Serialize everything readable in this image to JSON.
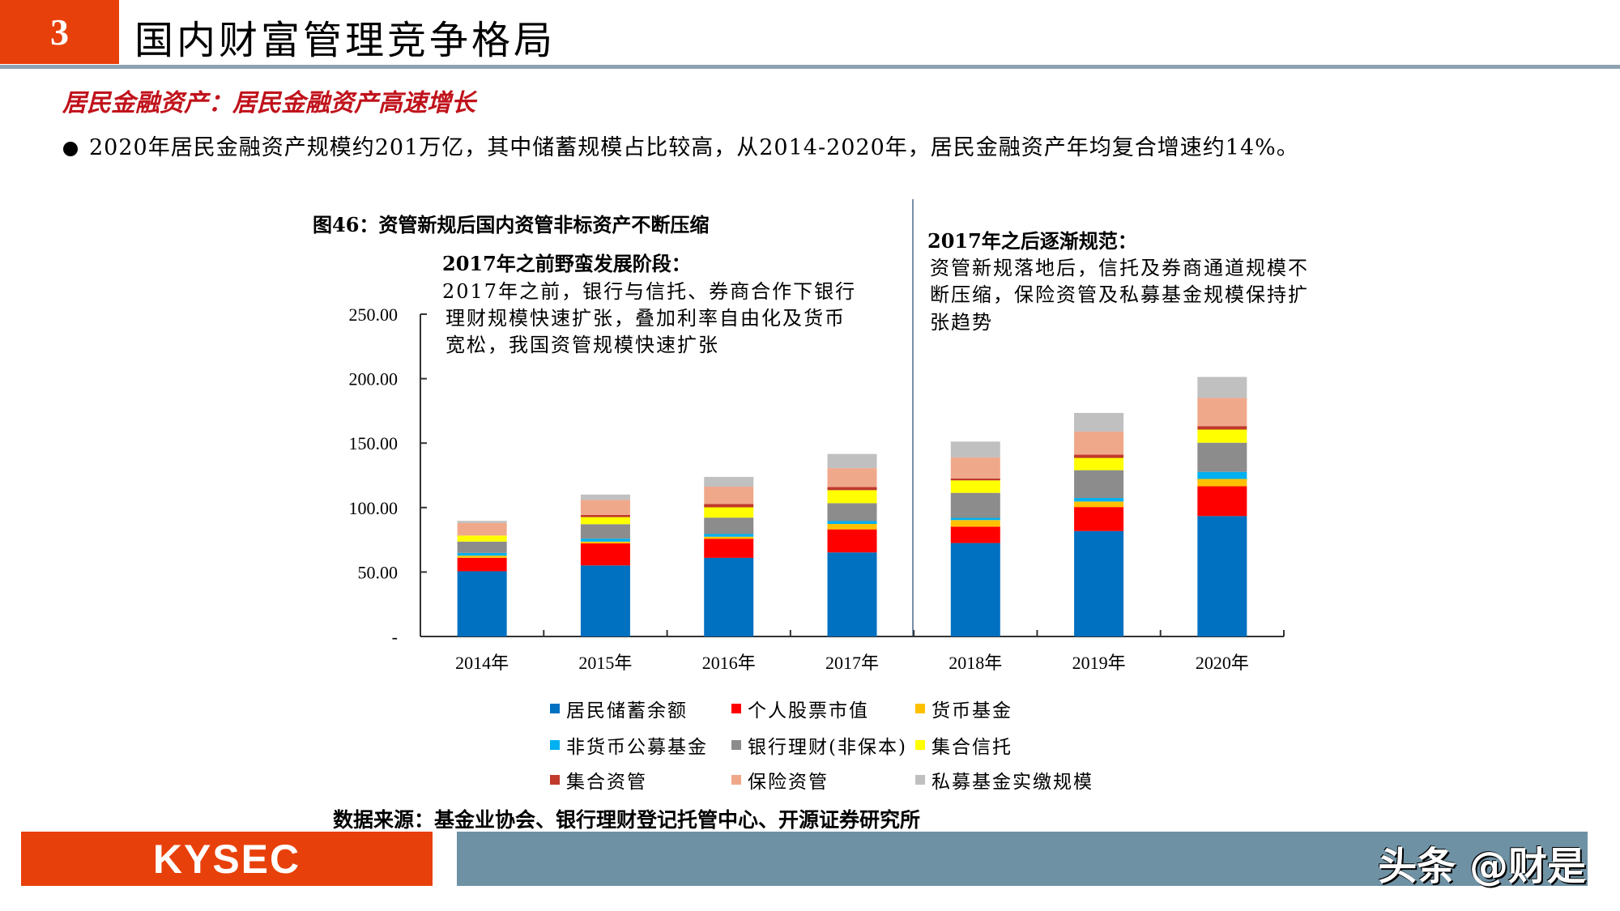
{
  "header": {
    "section_number": "3",
    "title": "国内财富管理竞争格局"
  },
  "subtitle": "居民金融资产：居民金融资产高速增长",
  "bullet": "2020年居民金融资产规模约201万亿，其中储蓄规模占比较高，从2014-2020年，居民金融资产年均复合增速约14%。",
  "figure_title": "图46：资管新规后国内资管非标资产不断压缩",
  "annotation_left": {
    "title": "2017年之前野蛮发展阶段：",
    "lines": [
      "2017年之前，银行与信托、券商合作下银行",
      "理财规模快速扩张，叠加利率自由化及货币",
      "宽松，我国资管规模快速扩张"
    ]
  },
  "annotation_right": {
    "title": "2017年之后逐渐规范：",
    "lines": [
      "资管新规落地后，信托及券商通道规模不",
      "断压缩，保险资管及私募基金规模保持扩",
      "张趋势"
    ]
  },
  "source": "数据来源：基金业协会、银行理财登记托管中心、开源证券研究所",
  "footer": {
    "logo": "KYSEC",
    "watermark": "头条 @财是"
  },
  "colors": {
    "header_accent": "#e8400a",
    "subtitle": "#c0121b",
    "footer_bar": "#6e91a4"
  },
  "chart_data": {
    "type": "bar",
    "stacked": true,
    "categories": [
      "2014年",
      "2015年",
      "2016年",
      "2017年",
      "2018年",
      "2019年",
      "2020年"
    ],
    "ylim": [
      0,
      250
    ],
    "yticks": [
      "-",
      "50.00",
      "100.00",
      "150.00",
      "200.00",
      "250.00"
    ],
    "ytick_values": [
      0,
      50,
      100,
      150,
      200,
      250
    ],
    "grid": false,
    "legend_position": "bottom",
    "series": [
      {
        "name": "居民储蓄余额",
        "color": "#0070c0",
        "values": [
          50.6,
          55.1,
          61.0,
          65.2,
          72.5,
          81.8,
          93.4
        ]
      },
      {
        "name": "个人股票市值",
        "color": "#ff0000",
        "values": [
          10.4,
          17.1,
          14.7,
          17.9,
          12.7,
          18.6,
          23.1
        ]
      },
      {
        "name": "货币基金",
        "color": "#ffc000",
        "values": [
          1.7,
          1.4,
          1.7,
          4.2,
          5.1,
          4.3,
          5.7
        ]
      },
      {
        "name": "非货币公募基金",
        "color": "#00b0f0",
        "values": [
          2.1,
          2.3,
          2.1,
          2.2,
          1.7,
          2.7,
          5.5
        ]
      },
      {
        "name": "银行理财(非保本)",
        "color": "#8c8c8c",
        "values": [
          8.8,
          11.2,
          12.7,
          13.9,
          19.4,
          21.6,
          22.6
        ]
      },
      {
        "name": "集合信托",
        "color": "#ffff00",
        "values": [
          4.7,
          5.5,
          8.0,
          10.1,
          9.7,
          9.5,
          10.2
        ]
      },
      {
        "name": "集合资管",
        "color": "#c0392b",
        "values": [
          0,
          1.7,
          2.5,
          2.5,
          1.5,
          2.5,
          2.7
        ]
      },
      {
        "name": "保险资管",
        "color": "#f0a88a",
        "values": [
          9.7,
          11.6,
          13.5,
          14.6,
          16.3,
          18.0,
          21.8
        ]
      },
      {
        "name": "私募基金实缴规模",
        "color": "#c0c0c0",
        "values": [
          1.7,
          4.2,
          7.6,
          11.0,
          12.3,
          14.4,
          16.3
        ]
      }
    ]
  }
}
